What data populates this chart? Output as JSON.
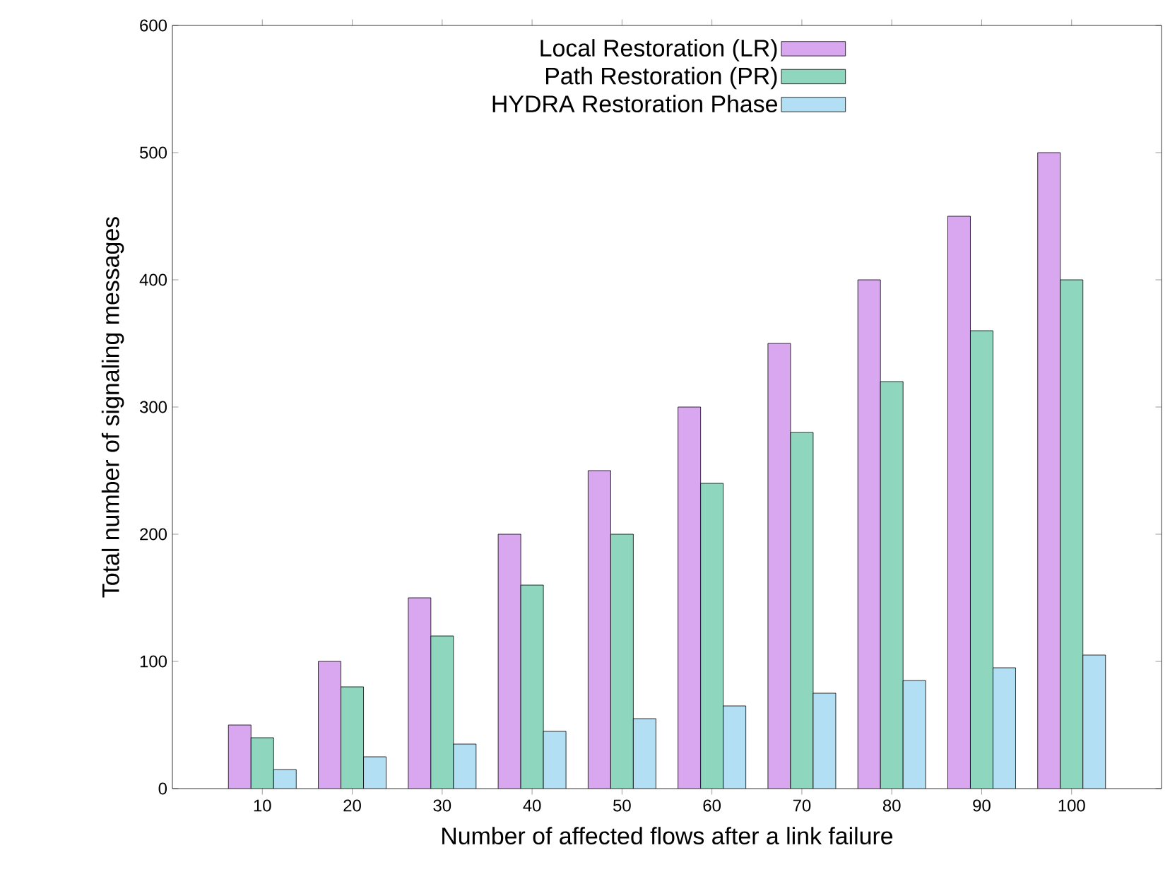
{
  "chart_data": {
    "type": "bar",
    "xlabel": "Number of affected flows after a link failure",
    "ylabel": "Total number of signaling messages",
    "categories": [
      "10",
      "20",
      "30",
      "40",
      "50",
      "60",
      "70",
      "80",
      "90",
      "100"
    ],
    "series": [
      {
        "name": "Local Restoration (LR)",
        "color": "#d9a6f0",
        "values": [
          50,
          100,
          150,
          200,
          250,
          300,
          350,
          400,
          450,
          500
        ]
      },
      {
        "name": "Path Restoration (PR)",
        "color": "#8fd6bf",
        "values": [
          40,
          80,
          120,
          160,
          200,
          240,
          280,
          320,
          360,
          400
        ]
      },
      {
        "name": "HYDRA Restoration Phase",
        "color": "#b3dff5",
        "values": [
          15,
          25,
          35,
          45,
          55,
          65,
          75,
          85,
          95,
          105
        ]
      }
    ],
    "ylim": [
      0,
      600
    ],
    "yticks": [
      0,
      100,
      200,
      300,
      400,
      500,
      600
    ],
    "grid": false,
    "legend": "top"
  }
}
